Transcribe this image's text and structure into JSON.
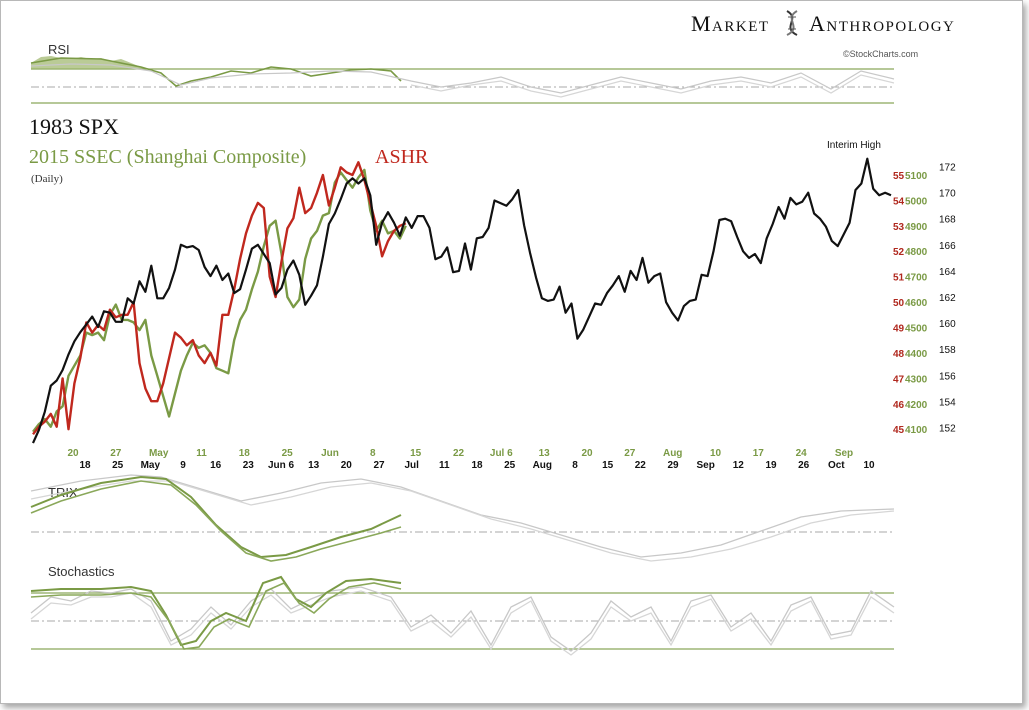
{
  "brand": {
    "name_left": "Market",
    "name_right": "Anthropology",
    "source": "©StockCharts.com"
  },
  "colors": {
    "spx": "#111111",
    "ssec": "#7a9a45",
    "ashr": "#c0281e",
    "axis_green": "#7a9a45",
    "axis_red": "#b0281e",
    "indicator_gray": "#c8c8c8",
    "panel_line": "#8aa85a"
  },
  "chart_data": {
    "type": "line",
    "title_lines": [
      "1983 SPX",
      "2015 SSEC (Shanghai Composite)",
      "ASHR"
    ],
    "subtitle": "(Daily)",
    "annotation": "Interim High",
    "x_axis": {
      "top_row_green": [
        "20",
        "27",
        "May",
        "11",
        "18",
        "25",
        "Jun",
        "8",
        "15",
        "22",
        "Jul 6",
        "13",
        "20",
        "27",
        "Aug",
        "10",
        "17",
        "24",
        "Sep"
      ],
      "bottom_row_black": [
        "18",
        "25",
        "May",
        "9",
        "16",
        "23",
        "Jun 6",
        "13",
        "20",
        "27",
        "Jul",
        "11",
        "18",
        "25",
        "Aug",
        "8",
        "15",
        "22",
        "29",
        "Sep",
        "12",
        "19",
        "26",
        "Oct",
        "10"
      ]
    },
    "y_axis_spx": {
      "ticks": [
        152,
        154,
        156,
        158,
        160,
        162,
        164,
        166,
        168,
        170,
        172
      ],
      "range": [
        150.5,
        173.5
      ]
    },
    "y_axis_ssec": {
      "ticks": [
        4100,
        4200,
        4300,
        4400,
        4500,
        4600,
        4700,
        4800,
        4900,
        5000,
        5100
      ],
      "range": [
        4030,
        5210
      ]
    },
    "y_axis_ashr": {
      "ticks": [
        45,
        46,
        47,
        48,
        49,
        50,
        51,
        52,
        53,
        54,
        55
      ],
      "range": [
        44.3,
        56.1
      ]
    },
    "series": [
      {
        "name": "1983 SPX",
        "values": [
          150.8,
          151.8,
          153.2,
          155.2,
          155.6,
          156.4,
          157.6,
          158.6,
          159.3,
          159.9,
          160.5,
          159.7,
          160.9,
          160.8,
          160.1,
          160.1,
          161.9,
          161.5,
          163.2,
          162.4,
          164.4,
          161.9,
          161.9,
          162.7,
          164.1,
          166.0,
          165.8,
          165.9,
          165.6,
          164.3,
          163.6,
          164.4,
          163.3,
          163.8,
          162.3,
          162.6,
          164.1,
          165.7,
          166.0,
          165.3,
          164.6,
          162.2,
          162.7,
          164.1,
          164.8,
          163.7,
          161.4,
          162.1,
          162.9,
          165.1,
          167.6,
          168.4,
          169.5,
          170.7,
          171.1,
          170.7,
          171.1,
          169.8,
          166.0,
          167.7,
          168.5,
          167.7,
          166.7,
          168.1,
          167.3,
          168.2,
          168.2,
          167.3,
          164.9,
          165.1,
          165.8,
          163.9,
          164.0,
          166.1,
          164.1,
          166.5,
          166.6,
          167.3,
          169.4,
          169.2,
          169.0,
          169.5,
          170.2,
          167.5,
          165.4,
          163.5,
          161.9,
          161.7,
          161.8,
          162.8,
          160.8,
          161.5,
          158.8,
          159.5,
          160.5,
          161.5,
          161.4,
          162.3,
          162.9,
          163.6,
          162.4,
          164.0,
          163.3,
          165.0,
          163.1,
          163.6,
          163.8,
          161.6,
          160.8,
          160.2,
          161.3,
          161.7,
          161.8,
          163.7,
          163.6,
          165.5,
          167.9,
          168.0,
          167.8,
          166.6,
          165.5,
          165.0,
          165.3,
          164.6,
          166.5,
          167.6,
          168.9,
          168.0,
          169.6,
          169.1,
          169.3,
          170.0,
          168.4,
          168.0,
          167.4,
          166.3,
          165.9,
          166.8,
          167.7,
          170.2,
          170.7,
          172.6,
          170.3,
          169.8,
          170.0,
          169.8
        ],
        "color": "#111111"
      },
      {
        "name": "2015 SSEC (Shanghai Composite)",
        "values": [
          4090,
          4120,
          4140,
          4110,
          4170,
          4190,
          4310,
          4350,
          4390,
          4480,
          4470,
          4480,
          4450,
          4550,
          4590,
          4530,
          4530,
          4520,
          4490,
          4530,
          4390,
          4310,
          4230,
          4150,
          4240,
          4330,
          4390,
          4440,
          4420,
          4430,
          4400,
          4340,
          4330,
          4320,
          4450,
          4530,
          4570,
          4650,
          4720,
          4820,
          4900,
          4920,
          4790,
          4620,
          4580,
          4610,
          4770,
          4850,
          4880,
          4940,
          4950,
          5070,
          5110,
          5080,
          5050,
          5090,
          5120,
          4960,
          4880,
          4920,
          4870,
          4880,
          4850,
          4900
        ],
        "color": "#7a9a45"
      },
      {
        "name": "ASHR",
        "values": [
          44.8,
          45.1,
          45.3,
          45.6,
          45.1,
          47.0,
          45.0,
          46.8,
          47.8,
          49.2,
          48.8,
          49.1,
          48.9,
          49.7,
          49.4,
          49.5,
          49.5,
          50.0,
          47.6,
          46.6,
          46.1,
          46.1,
          46.8,
          47.8,
          48.8,
          48.6,
          48.3,
          48.5,
          47.9,
          47.6,
          48.0,
          47.5,
          49.5,
          49.5,
          50.5,
          51.7,
          52.7,
          53.4,
          53.9,
          53.7,
          51.0,
          50.2,
          51.6,
          52.9,
          53.3,
          54.5,
          53.5,
          53.7,
          54.3,
          55.0,
          53.8,
          54.5,
          55.3,
          55.1,
          55.0,
          55.5,
          54.8,
          53.9,
          53.0,
          51.8,
          52.4,
          52.8,
          53.0,
          53.1
        ],
        "color": "#c0281e"
      }
    ]
  },
  "panels": {
    "rsi": {
      "label": "RSI"
    },
    "trix": {
      "label": "TRIX"
    },
    "stochastics": {
      "label": "Stochastics"
    }
  }
}
